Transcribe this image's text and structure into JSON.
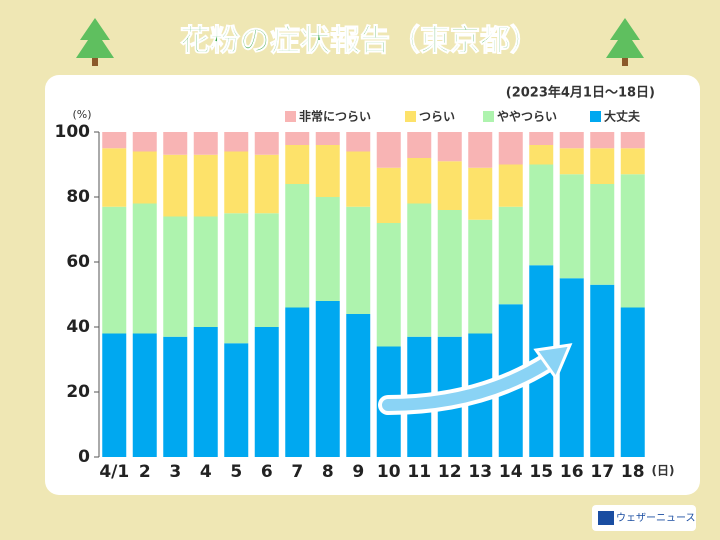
{
  "chart_data": {
    "type": "stacked_bar",
    "title": "花粉の症状報告（東京都）",
    "subtitle": "(2023年4月1日〜18日)",
    "y_label": "(%)",
    "x_label": "(日)",
    "categories": [
      "4/1",
      "2",
      "3",
      "4",
      "5",
      "6",
      "7",
      "8",
      "9",
      "10",
      "11",
      "12",
      "13",
      "14",
      "15",
      "16",
      "17",
      "18"
    ],
    "series": [
      {
        "name": "非常につらい",
        "color": "#f8b4b4",
        "values": [
          5,
          6,
          7,
          7,
          6,
          7,
          4,
          4,
          6,
          11,
          8,
          9,
          11,
          10,
          4,
          5,
          5,
          5
        ]
      },
      {
        "name": "つらい",
        "color": "#fde26a",
        "values": [
          18,
          16,
          19,
          19,
          19,
          18,
          12,
          16,
          17,
          17,
          14,
          15,
          16,
          13,
          6,
          8,
          11,
          8
        ]
      },
      {
        "name": "ややつらい",
        "color": "#aef3ae",
        "values": [
          39,
          40,
          37,
          34,
          40,
          35,
          38,
          32,
          33,
          38,
          41,
          39,
          35,
          30,
          31,
          32,
          31,
          41
        ]
      },
      {
        "name": "大丈夫",
        "color": "#00a8f0",
        "values": [
          38,
          38,
          37,
          40,
          35,
          40,
          46,
          48,
          44,
          34,
          37,
          37,
          38,
          47,
          59,
          55,
          53,
          46
        ]
      }
    ],
    "ylim": [
      0,
      100
    ],
    "yticks": [
      0,
      20,
      40,
      60,
      80,
      100
    ],
    "grid": false
  },
  "brand": "ウェザーニュース"
}
